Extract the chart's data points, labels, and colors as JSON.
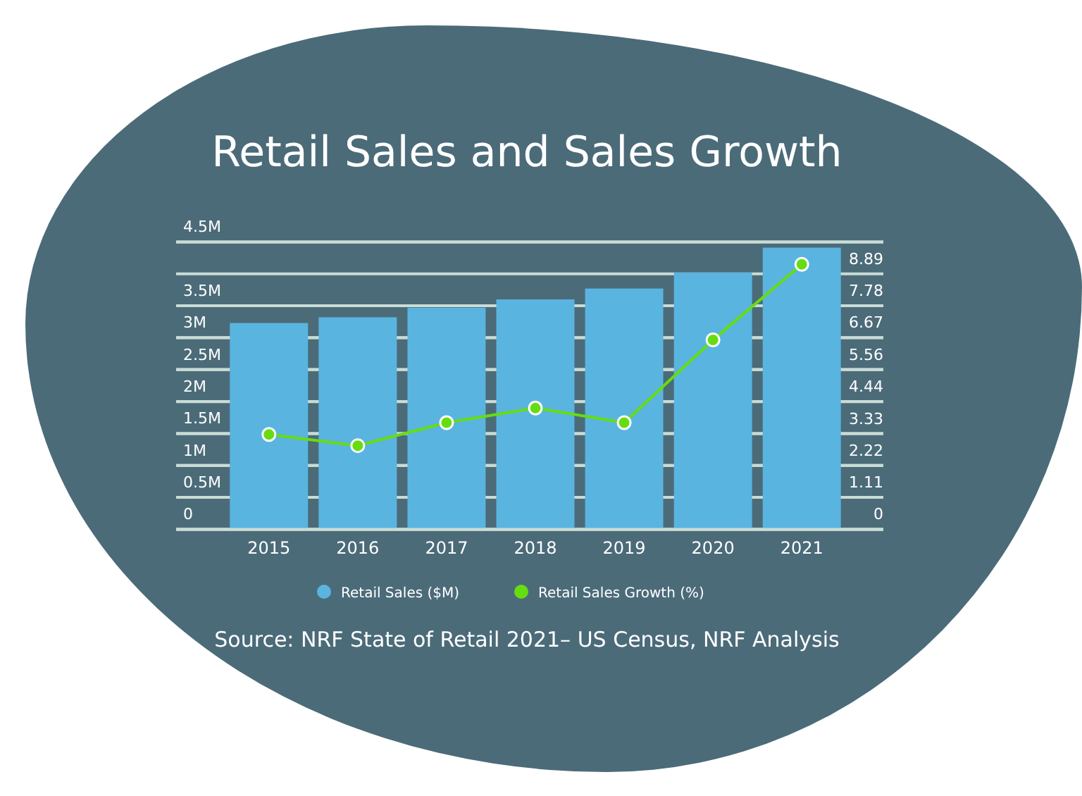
{
  "chart_data": {
    "type": "bar",
    "title": "Retail Sales and Sales Growth",
    "categories": [
      "2015",
      "2016",
      "2017",
      "2018",
      "2019",
      "2020",
      "2021"
    ],
    "series": [
      {
        "name": "Retail Sales ($M)",
        "color": "#5ab4e0",
        "values": [
          3.23,
          3.32,
          3.47,
          3.6,
          3.77,
          4.02,
          4.41
        ]
      },
      {
        "name": "Retail Sales Growth (%)",
        "type": "line",
        "axis": "y2",
        "color": "#66dd11",
        "values": [
          3.3,
          2.91,
          3.71,
          4.22,
          3.71,
          6.59,
          9.22
        ]
      }
    ],
    "ylim": [
      0,
      4.5
    ],
    "yticks": [
      0,
      {
        "value": 0.5,
        "label": "0.5M"
      },
      {
        "value": 1,
        "label": "1M"
      },
      {
        "value": 1.5,
        "label": "1.5M"
      },
      {
        "value": 2,
        "label": "2M"
      },
      {
        "value": 2.5,
        "label": "2.5M"
      },
      {
        "value": 3,
        "label": "3M"
      },
      {
        "value": 3.5,
        "label": "3.5M"
      },
      {
        "value": 4.5,
        "label": "4.5M"
      }
    ],
    "y2lim": [
      0,
      10
    ],
    "y2ticks": [
      0,
      1.11,
      2.22,
      3.33,
      4.44,
      5.56,
      6.67,
      7.78,
      8.89
    ],
    "grid": "y",
    "legend": "bottom",
    "marker": "circle",
    "annotations": [
      "Source: NRF State of Retail 2021– US Census, NRF Analysis"
    ]
  }
}
